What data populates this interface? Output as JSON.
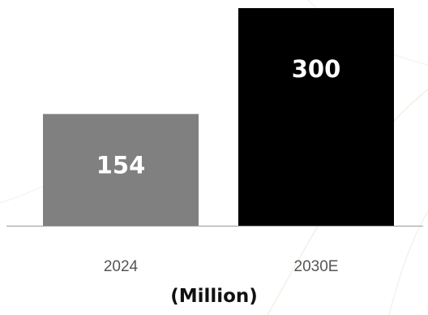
{
  "chart_data": {
    "type": "bar",
    "categories": [
      "2024",
      "2030E"
    ],
    "values": [
      154,
      300
    ],
    "data_labels": [
      "154",
      "300"
    ],
    "colors": [
      "#808080",
      "#000000"
    ],
    "value_label_color": "#ffffff",
    "category_label_color": "#555555",
    "axis_color": "#9a9a9a",
    "unit_label": "(Million)",
    "ylim": [
      0,
      300
    ],
    "grid": false,
    "legend": "none"
  }
}
